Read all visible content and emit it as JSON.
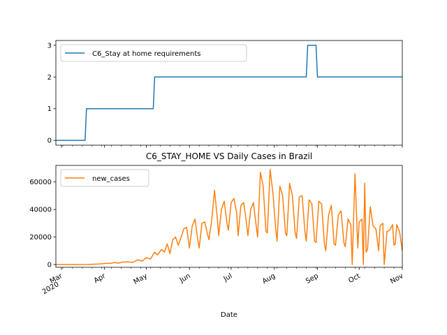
{
  "chart_data": [
    {
      "type": "line",
      "title": "",
      "xlabel": "",
      "ylabel": "",
      "xlim": [
        "2020-02-26",
        "2020-11-01"
      ],
      "ylim": [
        -0.15,
        3.15
      ],
      "yticks": [
        0,
        1,
        2,
        3
      ],
      "legend_position": "upper left",
      "series": [
        {
          "name": "C6_Stay at home requirements",
          "color": "#1f77b4",
          "step": true,
          "points": [
            [
              "2020-02-26",
              0
            ],
            [
              "2020-03-18",
              0
            ],
            [
              "2020-03-19",
              1
            ],
            [
              "2020-05-06",
              1
            ],
            [
              "2020-05-07",
              2
            ],
            [
              "2020-08-24",
              2
            ],
            [
              "2020-08-25",
              3
            ],
            [
              "2020-08-31",
              3
            ],
            [
              "2020-09-01",
              2
            ],
            [
              "2020-11-01",
              2
            ]
          ]
        }
      ]
    },
    {
      "type": "line",
      "title": "C6_STAY_HOME VS Daily Cases in Brazil",
      "xlabel": "Date",
      "ylabel": "",
      "xlim": [
        "2020-02-26",
        "2020-11-01"
      ],
      "ylim": [
        -2000,
        72000
      ],
      "yticks": [
        0,
        20000,
        40000,
        60000
      ],
      "legend_position": "upper left",
      "x_major_ticks": [
        {
          "date": "2020-03-01",
          "label": "Mar",
          "sublabel": "2020"
        },
        {
          "date": "2020-04-01",
          "label": "Apr"
        },
        {
          "date": "2020-05-01",
          "label": "May"
        },
        {
          "date": "2020-06-01",
          "label": "Jun"
        },
        {
          "date": "2020-07-01",
          "label": "Jul"
        },
        {
          "date": "2020-08-01",
          "label": "Aug"
        },
        {
          "date": "2020-09-01",
          "label": "Sep"
        },
        {
          "date": "2020-10-01",
          "label": "Oct"
        },
        {
          "date": "2020-11-01",
          "label": "Nov"
        }
      ],
      "series": [
        {
          "name": "new_cases",
          "color": "#ff7f0e",
          "points": [
            [
              "2020-02-26",
              0
            ],
            [
              "2020-03-10",
              0
            ],
            [
              "2020-03-20",
              100
            ],
            [
              "2020-03-28",
              400
            ],
            [
              "2020-04-01",
              800
            ],
            [
              "2020-04-06",
              1000
            ],
            [
              "2020-04-08",
              1500
            ],
            [
              "2020-04-11",
              1000
            ],
            [
              "2020-04-14",
              1800
            ],
            [
              "2020-04-18",
              2000
            ],
            [
              "2020-04-21",
              1500
            ],
            [
              "2020-04-25",
              3500
            ],
            [
              "2020-04-28",
              2500
            ],
            [
              "2020-05-01",
              5000
            ],
            [
              "2020-05-04",
              4000
            ],
            [
              "2020-05-07",
              9000
            ],
            [
              "2020-05-09",
              7000
            ],
            [
              "2020-05-12",
              11000
            ],
            [
              "2020-05-14",
              9000
            ],
            [
              "2020-05-16",
              15000
            ],
            [
              "2020-05-18",
              8000
            ],
            [
              "2020-05-20",
              18000
            ],
            [
              "2020-05-22",
              20000
            ],
            [
              "2020-05-24",
              14000
            ],
            [
              "2020-05-26",
              20000
            ],
            [
              "2020-05-28",
              26000
            ],
            [
              "2020-05-30",
              27000
            ],
            [
              "2020-06-01",
              12000
            ],
            [
              "2020-06-03",
              28000
            ],
            [
              "2020-06-05",
              33000
            ],
            [
              "2020-06-07",
              18000
            ],
            [
              "2020-06-08",
              12000
            ],
            [
              "2020-06-10",
              30000
            ],
            [
              "2020-06-12",
              31000
            ],
            [
              "2020-06-14",
              22000
            ],
            [
              "2020-06-15",
              18000
            ],
            [
              "2020-06-17",
              32000
            ],
            [
              "2020-06-19",
              54000
            ],
            [
              "2020-06-21",
              34000
            ],
            [
              "2020-06-22",
              21000
            ],
            [
              "2020-06-24",
              40000
            ],
            [
              "2020-06-26",
              46000
            ],
            [
              "2020-06-28",
              30000
            ],
            [
              "2020-06-29",
              25000
            ],
            [
              "2020-07-01",
              45000
            ],
            [
              "2020-07-03",
              48000
            ],
            [
              "2020-07-05",
              37000
            ],
            [
              "2020-07-06",
              21000
            ],
            [
              "2020-07-08",
              43000
            ],
            [
              "2020-07-10",
              45000
            ],
            [
              "2020-07-12",
              30000
            ],
            [
              "2020-07-13",
              21000
            ],
            [
              "2020-07-15",
              40000
            ],
            [
              "2020-07-17",
              45000
            ],
            [
              "2020-07-19",
              28000
            ],
            [
              "2020-07-20",
              20000
            ],
            [
              "2020-07-22",
              67000
            ],
            [
              "2020-07-24",
              57000
            ],
            [
              "2020-07-26",
              24000
            ],
            [
              "2020-07-27",
              23000
            ],
            [
              "2020-07-29",
              69000
            ],
            [
              "2020-07-31",
              52000
            ],
            [
              "2020-08-02",
              26000
            ],
            [
              "2020-08-03",
              17000
            ],
            [
              "2020-08-05",
              57000
            ],
            [
              "2020-08-07",
              50000
            ],
            [
              "2020-08-09",
              23000
            ],
            [
              "2020-08-10",
              21000
            ],
            [
              "2020-08-12",
              59000
            ],
            [
              "2020-08-14",
              50000
            ],
            [
              "2020-08-16",
              23000
            ],
            [
              "2020-08-17",
              19000
            ],
            [
              "2020-08-19",
              49000
            ],
            [
              "2020-08-21",
              50000
            ],
            [
              "2020-08-23",
              24000
            ],
            [
              "2020-08-24",
              17000
            ],
            [
              "2020-08-26",
              47000
            ],
            [
              "2020-08-28",
              44000
            ],
            [
              "2020-08-30",
              17000
            ],
            [
              "2020-08-31",
              16000
            ],
            [
              "2020-09-02",
              46000
            ],
            [
              "2020-09-04",
              44000
            ],
            [
              "2020-09-06",
              15000
            ],
            [
              "2020-09-07",
              10000
            ],
            [
              "2020-09-09",
              36000
            ],
            [
              "2020-09-11",
              43000
            ],
            [
              "2020-09-13",
              15000
            ],
            [
              "2020-09-14",
              14000
            ],
            [
              "2020-09-16",
              36000
            ],
            [
              "2020-09-18",
              39000
            ],
            [
              "2020-09-20",
              16000
            ],
            [
              "2020-09-21",
              13000
            ],
            [
              "2020-09-23",
              33000
            ],
            [
              "2020-09-25",
              29000
            ],
            [
              "2020-09-26",
              0
            ],
            [
              "2020-09-28",
              66000
            ],
            [
              "2020-09-30",
              12000
            ],
            [
              "2020-10-01",
              31000
            ],
            [
              "2020-10-03",
              33000
            ],
            [
              "2020-10-04",
              0
            ],
            [
              "2020-10-05",
              59000
            ],
            [
              "2020-10-06",
              9000
            ],
            [
              "2020-10-07",
              11000
            ],
            [
              "2020-10-09",
              42000
            ],
            [
              "2020-10-11",
              28000
            ],
            [
              "2020-10-13",
              26000
            ],
            [
              "2020-10-15",
              10000
            ],
            [
              "2020-10-16",
              28000
            ],
            [
              "2020-10-18",
              30000
            ],
            [
              "2020-10-19",
              0
            ],
            [
              "2020-10-21",
              24000
            ],
            [
              "2020-10-23",
              25000
            ],
            [
              "2020-10-25",
              29000
            ],
            [
              "2020-10-26",
              14000
            ],
            [
              "2020-10-27",
              15000
            ],
            [
              "2020-10-28",
              29000
            ],
            [
              "2020-10-30",
              24000
            ],
            [
              "2020-11-01",
              10000
            ]
          ]
        }
      ]
    }
  ]
}
